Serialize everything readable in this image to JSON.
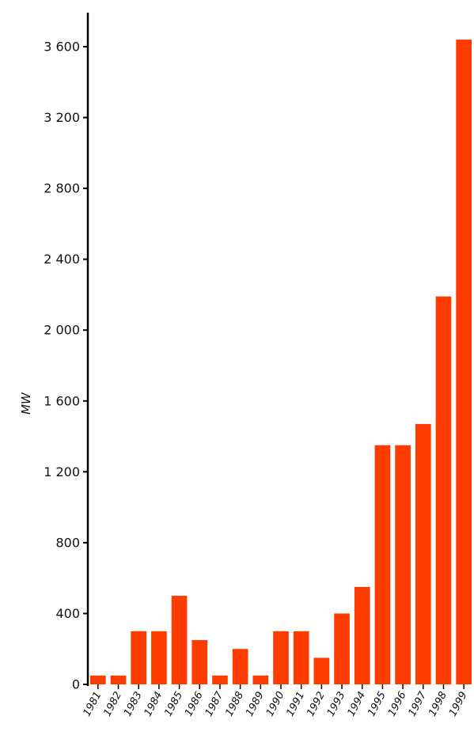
{
  "chart_data": {
    "type": "bar",
    "title": "",
    "xlabel": "",
    "ylabel": "MW",
    "categories": [
      "1981",
      "1982",
      "1983",
      "1984",
      "1985",
      "1986",
      "1987",
      "1988",
      "1989",
      "1990",
      "1991",
      "1992",
      "1993",
      "1994",
      "1995",
      "1996",
      "1997",
      "1998",
      "1999"
    ],
    "values": [
      50,
      50,
      300,
      300,
      500,
      250,
      50,
      200,
      50,
      300,
      300,
      150,
      400,
      550,
      1350,
      1350,
      1470,
      2190,
      3640
    ],
    "ylim": [
      0,
      3800
    ],
    "yticks": [
      0,
      400,
      800,
      1200,
      1600,
      2000,
      2400,
      2800,
      3200,
      3600
    ],
    "ytick_labels": [
      "0",
      "400",
      "800",
      "1 200",
      "1 600",
      "2 000",
      "2 400",
      "2 800",
      "3 200",
      "3 600"
    ],
    "bar_color": "#ff3c00",
    "grid": false,
    "legend": "none"
  }
}
